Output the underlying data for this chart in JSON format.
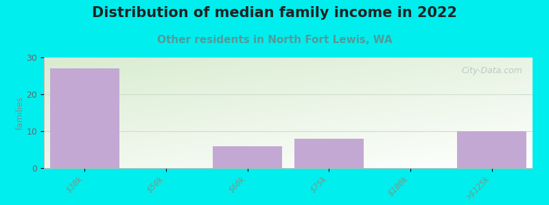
{
  "title": "Distribution of median family income in 2022",
  "subtitle": "Other residents in North Fort Lewis, WA",
  "categories": [
    "$30k",
    "$50k",
    "$60k",
    "$75k",
    "$100k",
    ">$125k"
  ],
  "values": [
    27,
    0,
    6,
    8,
    0,
    10
  ],
  "bar_color": "#c4a8d4",
  "background_color": "#00eeee",
  "plot_bg_color_topleft": "#d8ecd0",
  "plot_bg_color_right": "#f5f8f0",
  "plot_bg_color_bottom": "#ffffff",
  "ylabel": "families",
  "ylim": [
    0,
    30
  ],
  "yticks": [
    0,
    10,
    20,
    30
  ],
  "title_fontsize": 15,
  "subtitle_fontsize": 11,
  "subtitle_color": "#559999",
  "tick_label_color": "#779988",
  "ylabel_color": "#888888",
  "watermark": "City-Data.com",
  "grid_color": "#ccddcc",
  "spine_color": "#bbbbbb"
}
